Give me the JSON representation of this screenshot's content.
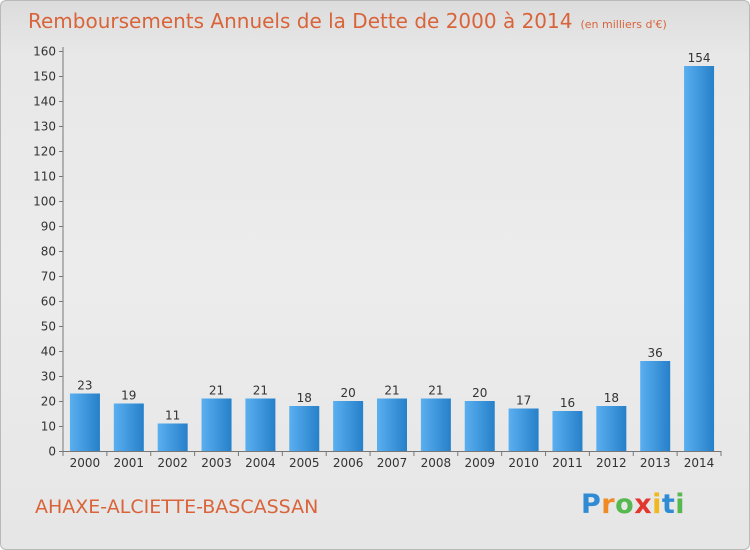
{
  "title": "Remboursements Annuels de la Dette de 2000 à 2014",
  "unit_label": "(en milliers d'€)",
  "commune": "AHAXE-ALCIETTE-BASCASSAN",
  "logo": {
    "text": "Proxiti",
    "letters": [
      "P",
      "r",
      "o",
      "x",
      "i",
      "t",
      "i"
    ],
    "colors": [
      "#2e8bd4",
      "#f08a24",
      "#56b84e",
      "#e2372f",
      "#f0b81c",
      "#2e8bd4",
      "#56b84e"
    ]
  },
  "colors": {
    "title": "#d9643a",
    "bar_light": "#5aaff0",
    "bar_dark": "#2680c9"
  },
  "chart_data": {
    "type": "bar",
    "title": "Remboursements Annuels de la Dette de 2000 à 2014",
    "xlabel": "",
    "ylabel": "en milliers d'€",
    "categories": [
      "2000",
      "2001",
      "2002",
      "2003",
      "2004",
      "2005",
      "2006",
      "2007",
      "2008",
      "2009",
      "2010",
      "2011",
      "2012",
      "2013",
      "2014"
    ],
    "values": [
      23,
      19,
      11,
      21,
      21,
      18,
      20,
      21,
      21,
      20,
      17,
      16,
      18,
      36,
      154
    ],
    "ylim": [
      0,
      160
    ],
    "yticks": [
      0,
      10,
      20,
      30,
      40,
      50,
      60,
      70,
      80,
      90,
      100,
      110,
      120,
      130,
      140,
      150,
      160
    ],
    "grid": false,
    "legend": "none"
  }
}
